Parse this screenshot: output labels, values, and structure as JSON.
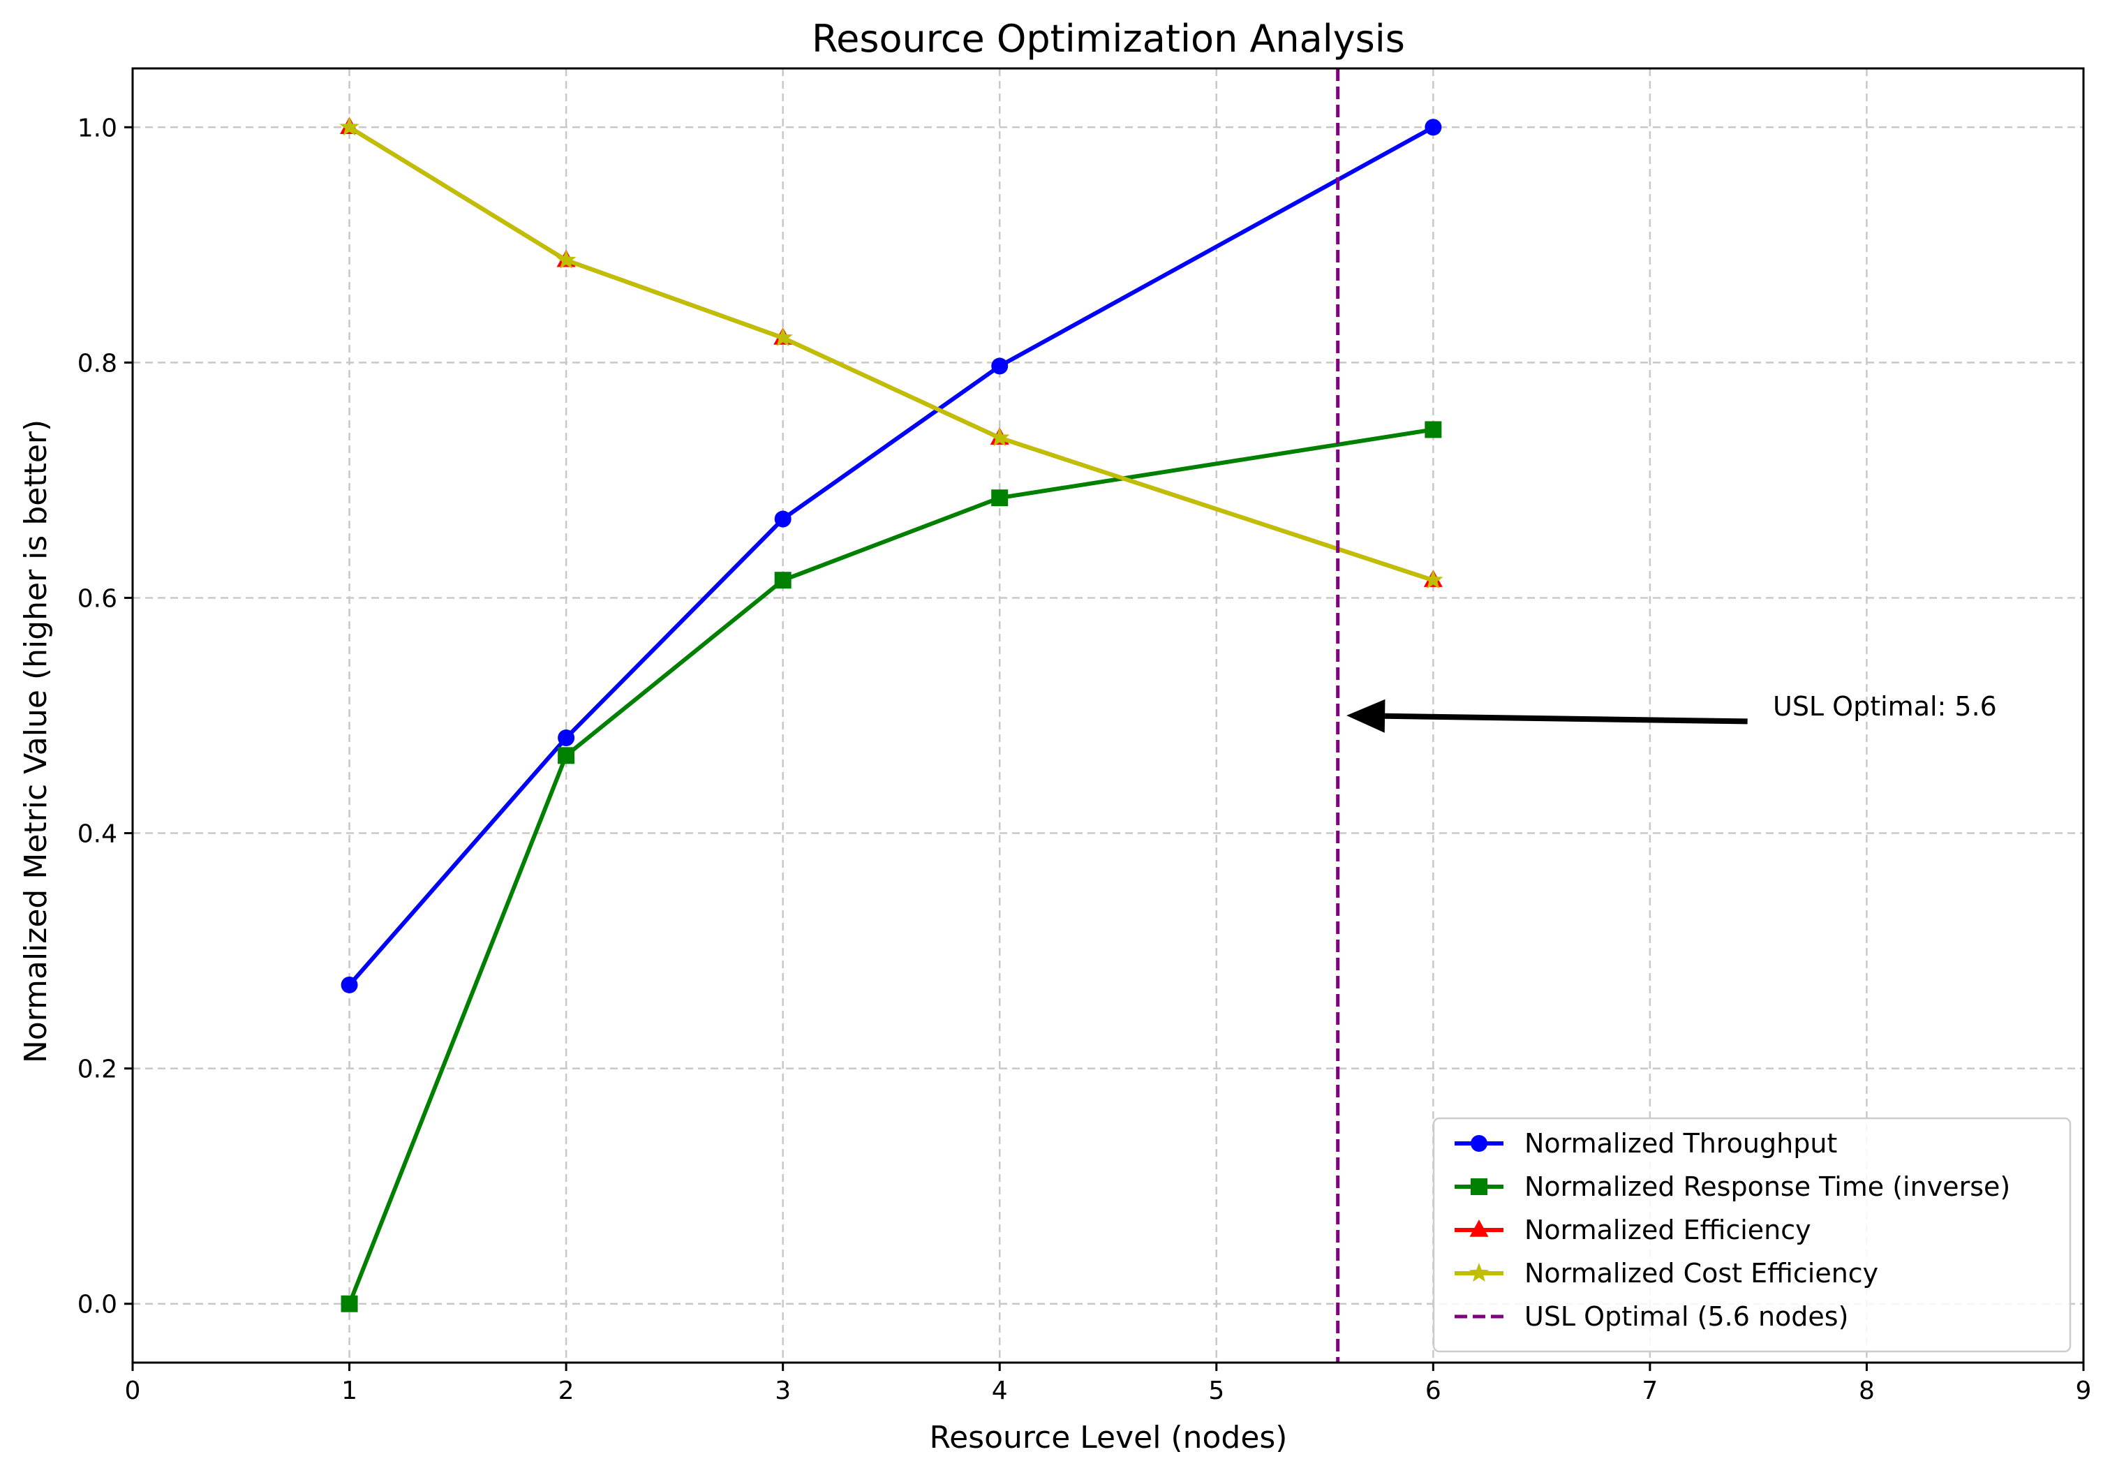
{
  "chart_data": {
    "type": "line",
    "title": "Resource Optimization Analysis",
    "xlabel": "Resource Level (nodes)",
    "ylabel": "Normalized Metric Value (higher is better)",
    "xlim": [
      0,
      9
    ],
    "ylim": [
      -0.05,
      1.05
    ],
    "xticks": [
      0,
      1,
      2,
      3,
      4,
      5,
      6,
      7,
      8,
      9
    ],
    "yticks": [
      0.0,
      0.2,
      0.4,
      0.6,
      0.8,
      1.0
    ],
    "ytick_labels": [
      "0.0",
      "0.2",
      "0.4",
      "0.6",
      "0.8",
      "1.0"
    ],
    "grid": true,
    "legend_position": "bottom-right",
    "x": [
      1,
      2,
      3,
      4,
      6
    ],
    "series": [
      {
        "name": "Normalized Throughput",
        "values": [
          0.271,
          0.481,
          0.667,
          0.797,
          1.0
        ],
        "color": "#0000ff",
        "marker": "circle"
      },
      {
        "name": "Normalized Response Time (inverse)",
        "values": [
          0.0,
          0.466,
          0.615,
          0.685,
          0.743
        ],
        "color": "#008000",
        "marker": "square"
      },
      {
        "name": "Normalized Efficiency",
        "values": [
          1.0,
          0.887,
          0.821,
          0.736,
          0.615
        ],
        "color": "#ff0000",
        "marker": "triangle"
      },
      {
        "name": "Normalized Cost Efficiency",
        "values": [
          1.0,
          0.887,
          0.821,
          0.736,
          0.615
        ],
        "color": "#bfbf00",
        "marker": "star"
      }
    ],
    "vline": {
      "name": "USL Optimal (5.6 nodes)",
      "x": 5.56,
      "color": "#800080",
      "style": "dashed"
    },
    "annotation": {
      "text": "USL Optimal: 5.6",
      "arrow_to": [
        5.6,
        0.5
      ],
      "text_at": [
        7.45,
        0.495
      ]
    }
  }
}
